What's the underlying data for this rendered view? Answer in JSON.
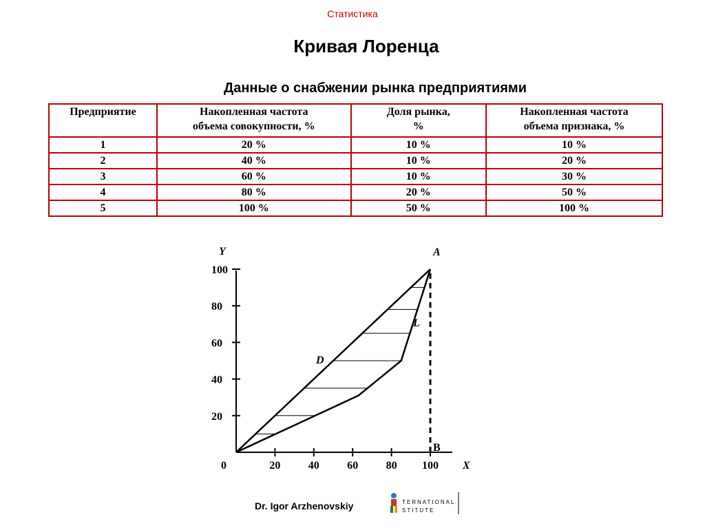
{
  "header": {
    "label": "Статистика"
  },
  "slide": {
    "title": "Кривая Лоренца",
    "table_title": "Данные о снабжении рынка предприятиями"
  },
  "table": {
    "headers": [
      "Предприятие",
      "Накопленная частота\nобъема совокупности, %",
      "Доля рынка,\n%",
      "Накопленная частота\nобъема признака, %"
    ],
    "rows": [
      [
        "1",
        "20 %",
        "10 %",
        "10 %"
      ],
      [
        "2",
        "40 %",
        "10 %",
        "20 %"
      ],
      [
        "3",
        "60 %",
        "10 %",
        "30 %"
      ],
      [
        "4",
        "80 %",
        "20 %",
        "50 %"
      ],
      [
        "5",
        "100 %",
        "50 %",
        "100 %"
      ]
    ],
    "border_color": "#c00000"
  },
  "chart_data": {
    "type": "line",
    "xlabel": "X",
    "ylabel": "Y",
    "origin_label": "0",
    "x_ticks": [
      "20",
      "40",
      "60",
      "80",
      "100"
    ],
    "y_ticks": [
      "20",
      "40",
      "60",
      "80",
      "100"
    ],
    "xlim": [
      0,
      100
    ],
    "ylim": [
      0,
      100
    ],
    "point_labels": {
      "A": "A",
      "B": "B",
      "D": "D",
      "L": "L"
    },
    "series": [
      {
        "x": [
          0,
          100
        ],
        "y": [
          0,
          100
        ],
        "style": "solid"
      },
      {
        "x": [
          0,
          63,
          85,
          100
        ],
        "y": [
          0,
          31,
          50,
          100
        ],
        "style": "solid"
      },
      {
        "x": [
          100,
          100
        ],
        "y": [
          0,
          100
        ],
        "style": "dashed"
      }
    ],
    "hatch_lines_y": [
      10,
      20,
      35,
      50,
      65,
      78,
      90
    ],
    "grid": false
  },
  "footer": {
    "author": "Dr. Igor Arzhenovskiy",
    "logo_line1": "TERNATIONAL",
    "logo_line2": "STITUTE"
  }
}
